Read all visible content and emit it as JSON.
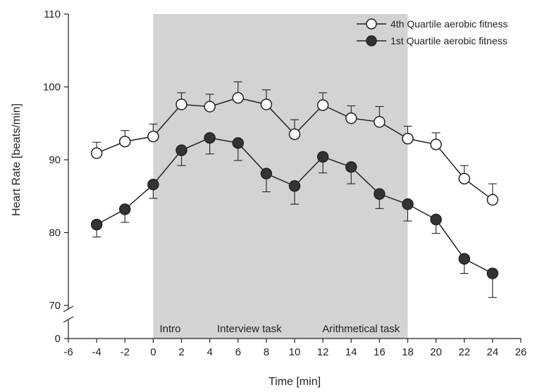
{
  "chart_data": {
    "type": "line",
    "xlabel": "Time [min]",
    "ylabel": "Heart Rate [beats/min]",
    "xlim": [
      -6,
      26
    ],
    "ylim": [
      70,
      110
    ],
    "y_axis_break": true,
    "x_ticks": [
      -6,
      -4,
      -2,
      0,
      2,
      4,
      6,
      8,
      10,
      12,
      14,
      16,
      18,
      20,
      22,
      24,
      26
    ],
    "y_ticks": [
      0,
      70,
      80,
      90,
      100,
      110
    ],
    "grid": false,
    "legend_position": "top-right",
    "shaded_region": {
      "x_start": 0,
      "x_end": 18,
      "color": "#d3d3d3"
    },
    "phase_labels": [
      {
        "text": "Intro",
        "x": 1.2
      },
      {
        "text": "Interview task",
        "x": 6.8
      },
      {
        "text": "Arithmetical task",
        "x": 14.7
      }
    ],
    "x": [
      -4,
      -2,
      0,
      2,
      4,
      6,
      8,
      10,
      12,
      14,
      16,
      18,
      20,
      22,
      24
    ],
    "series": [
      {
        "name": "4th Quartile aerobic fitness",
        "marker": "open-circle",
        "color": "#222222",
        "values": [
          90.9,
          92.5,
          93.2,
          97.6,
          97.3,
          98.5,
          97.6,
          93.5,
          97.5,
          95.7,
          95.2,
          92.9,
          92.1,
          87.4,
          84.5
        ],
        "errors": [
          1.5,
          1.5,
          1.7,
          1.6,
          1.7,
          2.2,
          2.0,
          2.0,
          1.7,
          1.7,
          2.1,
          1.7,
          1.6,
          1.8,
          2.2
        ]
      },
      {
        "name": "1st Quartile aerobic fitness",
        "marker": "filled-circle",
        "color": "#222222",
        "values": [
          81.1,
          83.2,
          86.6,
          91.3,
          93.0,
          92.3,
          88.1,
          86.4,
          90.4,
          89.0,
          85.3,
          83.9,
          81.8,
          76.4,
          74.4
        ],
        "errors": [
          1.7,
          1.8,
          1.9,
          2.1,
          2.2,
          2.4,
          2.5,
          2.5,
          2.2,
          2.3,
          2.0,
          2.3,
          1.9,
          2.0,
          3.3
        ]
      }
    ]
  }
}
